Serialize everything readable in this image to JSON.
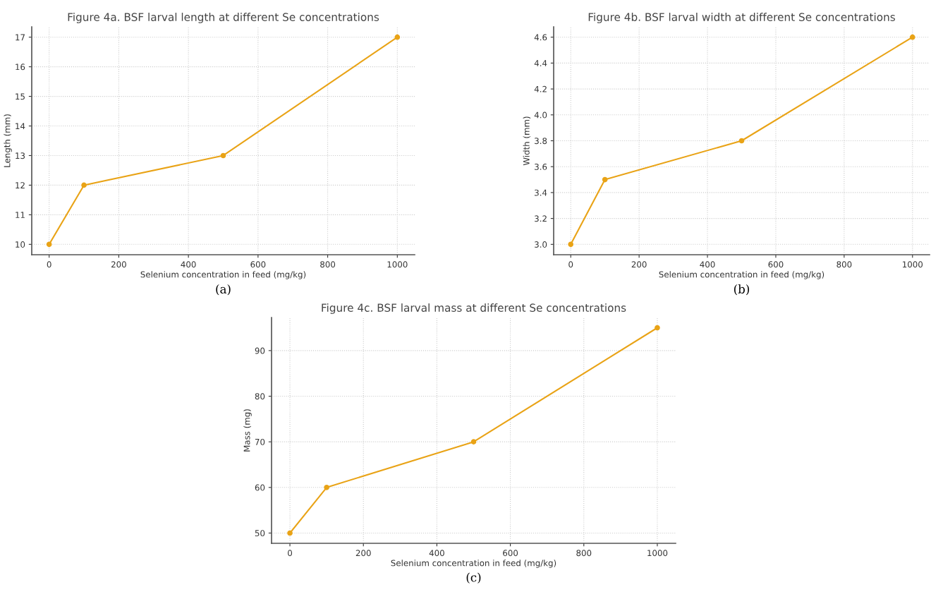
{
  "chart_data": [
    {
      "type": "line",
      "title": "Figure 4a. BSF larval length at different Se concentrations",
      "xlabel": "Selenium concentration in feed (mg/kg)",
      "ylabel": "Length (mm)",
      "x": [
        0,
        100,
        500,
        1000
      ],
      "series": [
        {
          "color": "#e9a316",
          "values": [
            10,
            12,
            13,
            17
          ]
        }
      ],
      "xlim": [
        -50,
        1050
      ],
      "xticks": [
        0,
        200,
        400,
        600,
        800,
        1000
      ],
      "ylim": [
        9.65,
        17.35
      ],
      "yticks": [
        10,
        11,
        12,
        13,
        14,
        15,
        16,
        17
      ],
      "grid": true,
      "marker": "circle",
      "line_style": "solid",
      "annotations": [
        "(a)"
      ]
    },
    {
      "type": "line",
      "title": "Figure 4b. BSF larval width at different Se concentrations",
      "xlabel": "Selenium concentration in feed (mg/kg)",
      "ylabel": "Width (mm)",
      "x": [
        0,
        100,
        500,
        1000
      ],
      "series": [
        {
          "color": "#e9a316",
          "values": [
            3.0,
            3.5,
            3.8,
            4.6
          ]
        }
      ],
      "xlim": [
        -50,
        1050
      ],
      "xticks": [
        0,
        200,
        400,
        600,
        800,
        1000
      ],
      "ylim": [
        2.92,
        4.68
      ],
      "yticks": [
        {
          "value": 3.0,
          "label": "3.0"
        },
        {
          "value": 3.2,
          "label": "3.2"
        },
        {
          "value": 3.4,
          "label": "3.4"
        },
        {
          "value": 3.6,
          "label": "3.6"
        },
        {
          "value": 3.8,
          "label": "3.8"
        },
        {
          "value": 4.0,
          "label": "4.0"
        },
        {
          "value": 4.2,
          "label": "4.2"
        },
        {
          "value": 4.4,
          "label": "4.4"
        },
        {
          "value": 4.6,
          "label": "4.6"
        }
      ],
      "grid": true,
      "marker": "circle",
      "line_style": "solid",
      "annotations": [
        "(b)"
      ]
    },
    {
      "type": "line",
      "title": "Figure 4c. BSF larval mass at different Se concentrations",
      "xlabel": "Selenium concentration in feed (mg/kg)",
      "ylabel": "Mass (mg)",
      "x": [
        0,
        100,
        500,
        1000
      ],
      "series": [
        {
          "color": "#e9a316",
          "values": [
            50,
            60,
            70,
            95
          ]
        }
      ],
      "xlim": [
        -50,
        1050
      ],
      "xticks": [
        0,
        200,
        400,
        600,
        800,
        1000
      ],
      "ylim": [
        47.75,
        97.25
      ],
      "yticks": [
        50,
        60,
        70,
        80,
        90
      ],
      "grid": true,
      "marker": "circle",
      "line_style": "solid",
      "annotations": [
        "(c)"
      ]
    }
  ]
}
